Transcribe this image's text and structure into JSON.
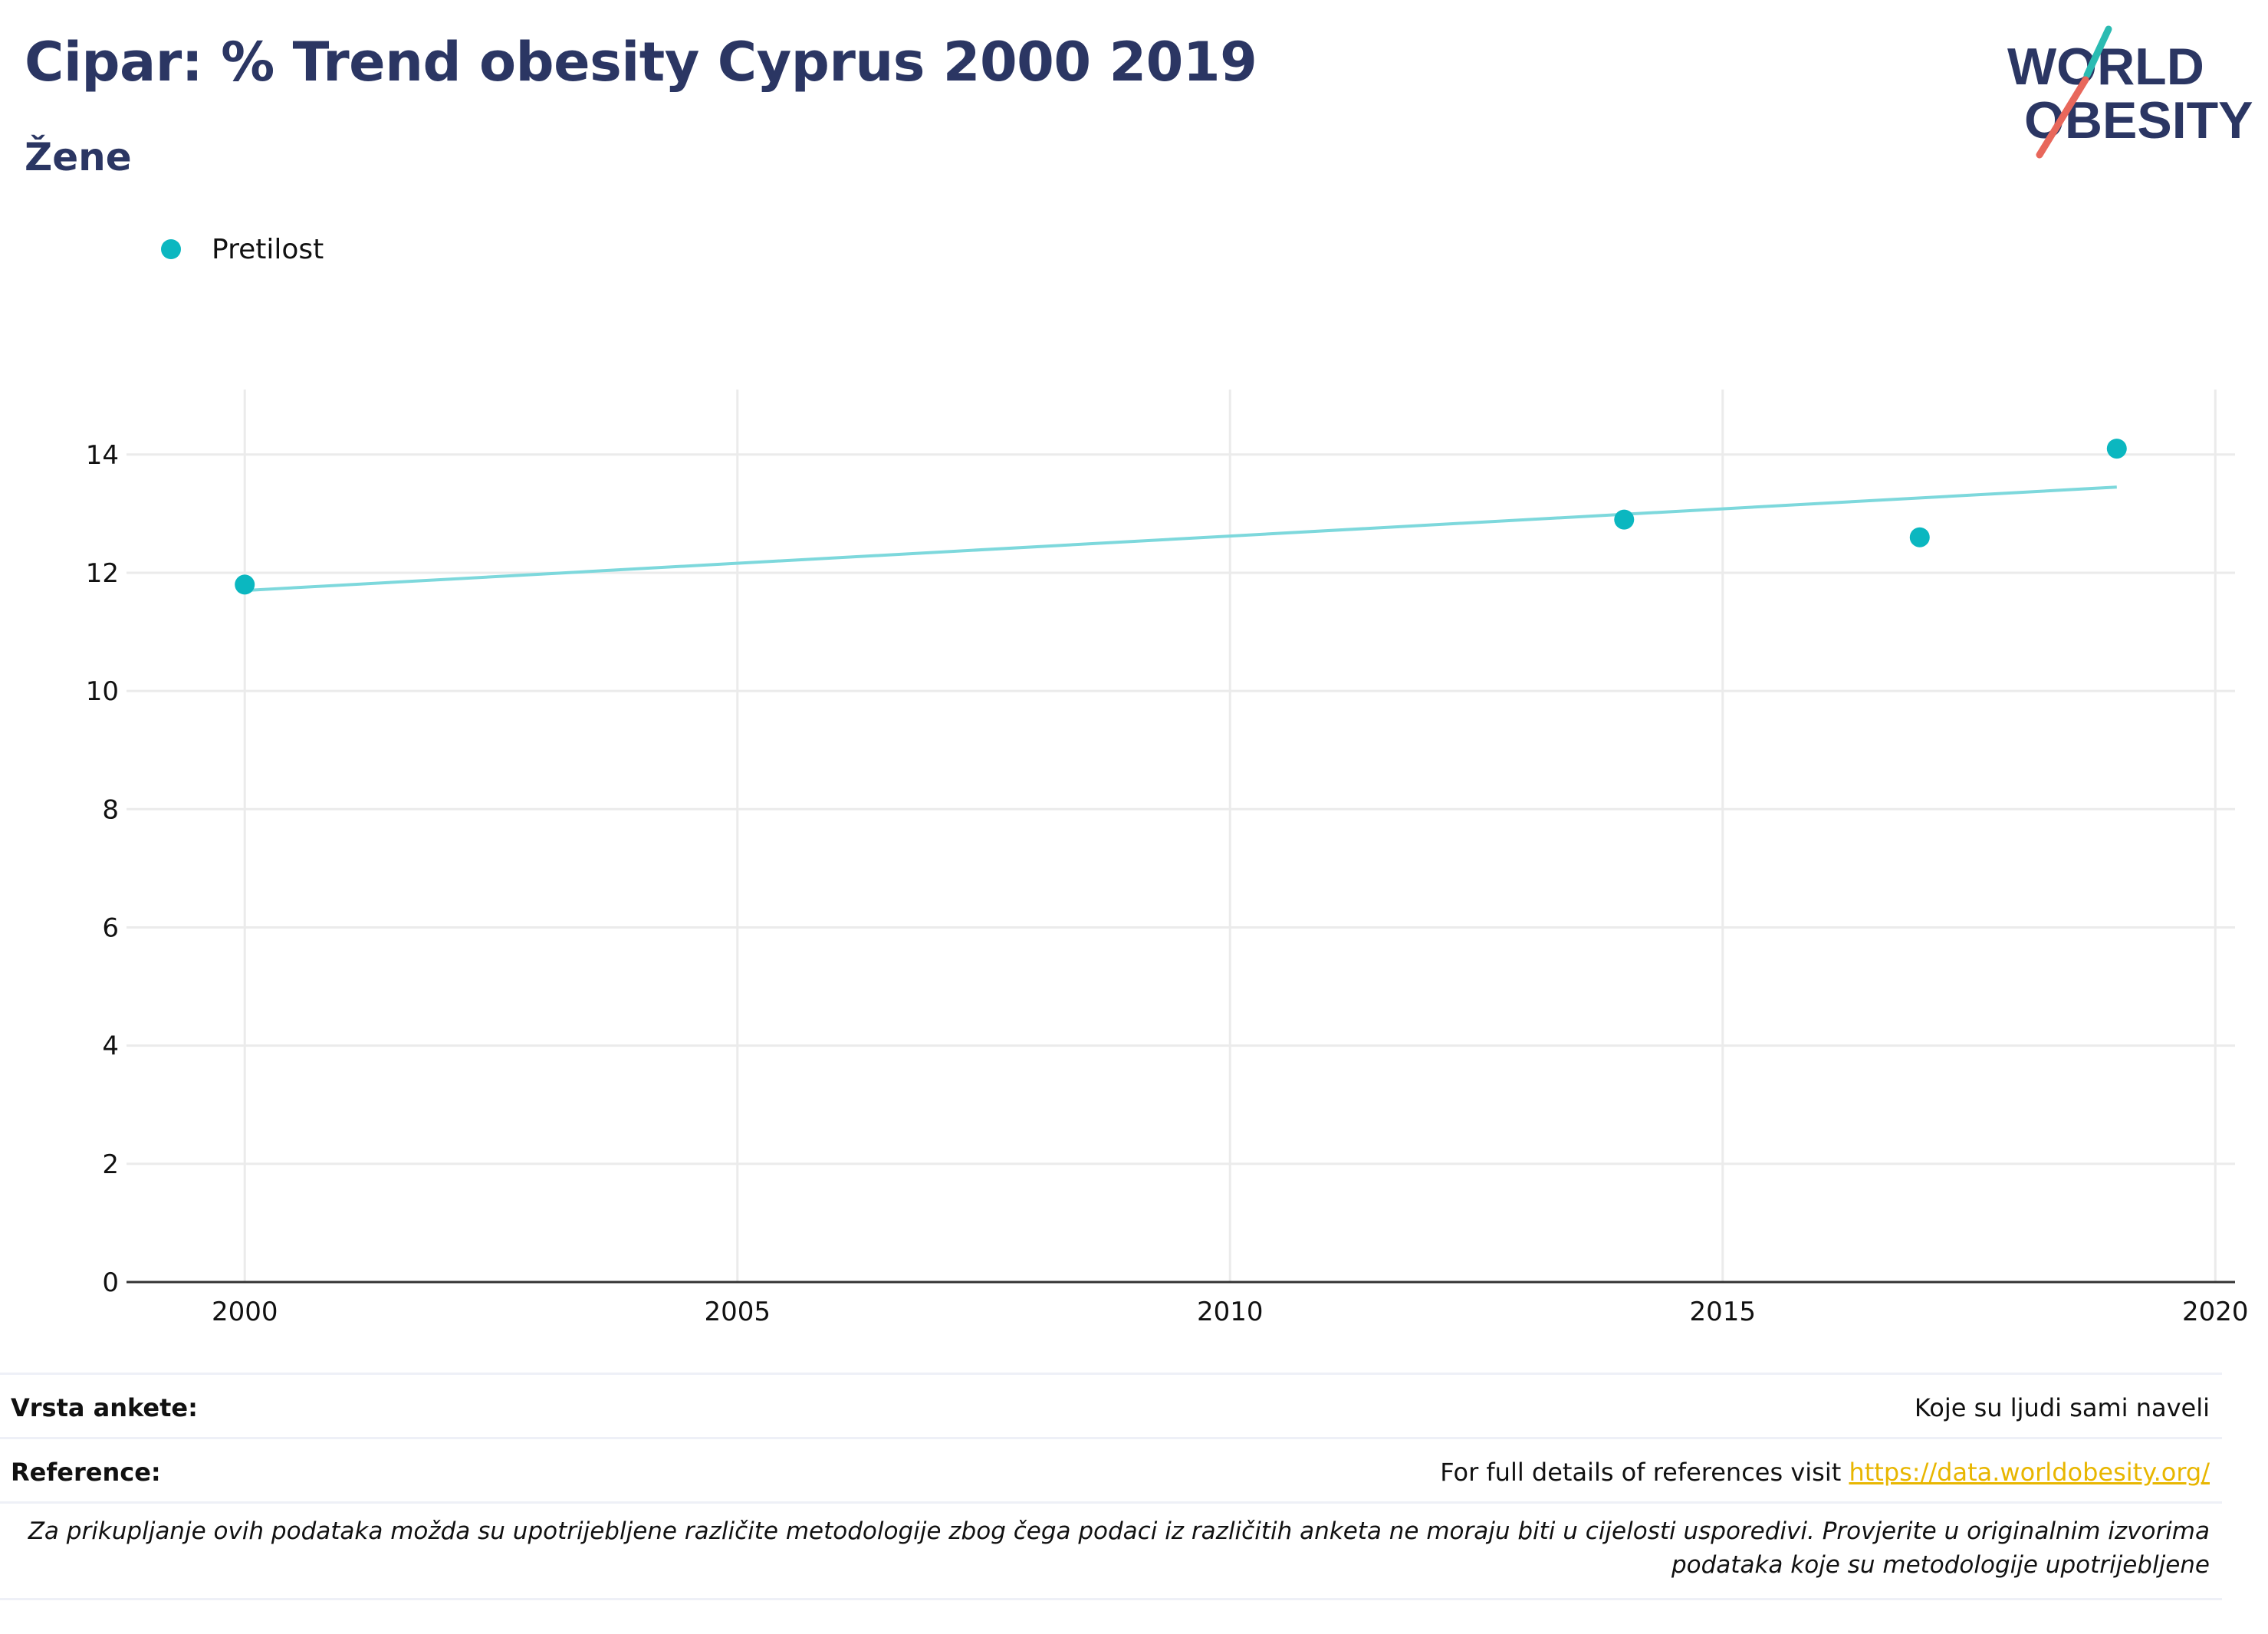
{
  "header": {
    "title": "Cipar: % Trend obesity Cyprus 2000 2019",
    "subtitle": "Žene"
  },
  "logo": {
    "line1": "WORLD",
    "line2": "OBESITY"
  },
  "colors": {
    "accent": "#0bb7c0",
    "trend": "#7dd8dc",
    "title": "#2b3663",
    "link": "#e8b600",
    "logo_teal": "#2bbbb2",
    "logo_red": "#e8675b"
  },
  "chart_data": {
    "type": "scatter",
    "series": [
      {
        "name": "Pretilost",
        "x": [
          2000,
          2014,
          2017,
          2019
        ],
        "y": [
          11.8,
          12.9,
          12.6,
          14.1
        ]
      }
    ],
    "trendline": {
      "x": [
        2000,
        2019
      ],
      "y": [
        11.7,
        13.45
      ]
    },
    "xlim": [
      1998.8,
      2020.2
    ],
    "ylim": [
      0,
      15.1
    ],
    "xticks": [
      2000,
      2005,
      2010,
      2015,
      2020
    ],
    "yticks": [
      0,
      2,
      4,
      6,
      8,
      10,
      12,
      14
    ],
    "grid": true,
    "legend": "top-left",
    "xlabel": "",
    "ylabel": ""
  },
  "footer": {
    "survey_label": "Vrsta ankete:",
    "survey_value": "Koje su ljudi sami naveli",
    "reference_label": "Reference:",
    "reference_text": "For full details of references visit ",
    "reference_link": "https://data.worldobesity.org/",
    "note_line1": "Za prikupljanje ovih podataka možda su upotrijebljene različite metodologije zbog čega podaci iz različitih anketa ne moraju biti u cijelosti usporedivi. Provjerite u originalnim izvorima",
    "note_line2": "podataka koje su metodologije upotrijebljene"
  }
}
